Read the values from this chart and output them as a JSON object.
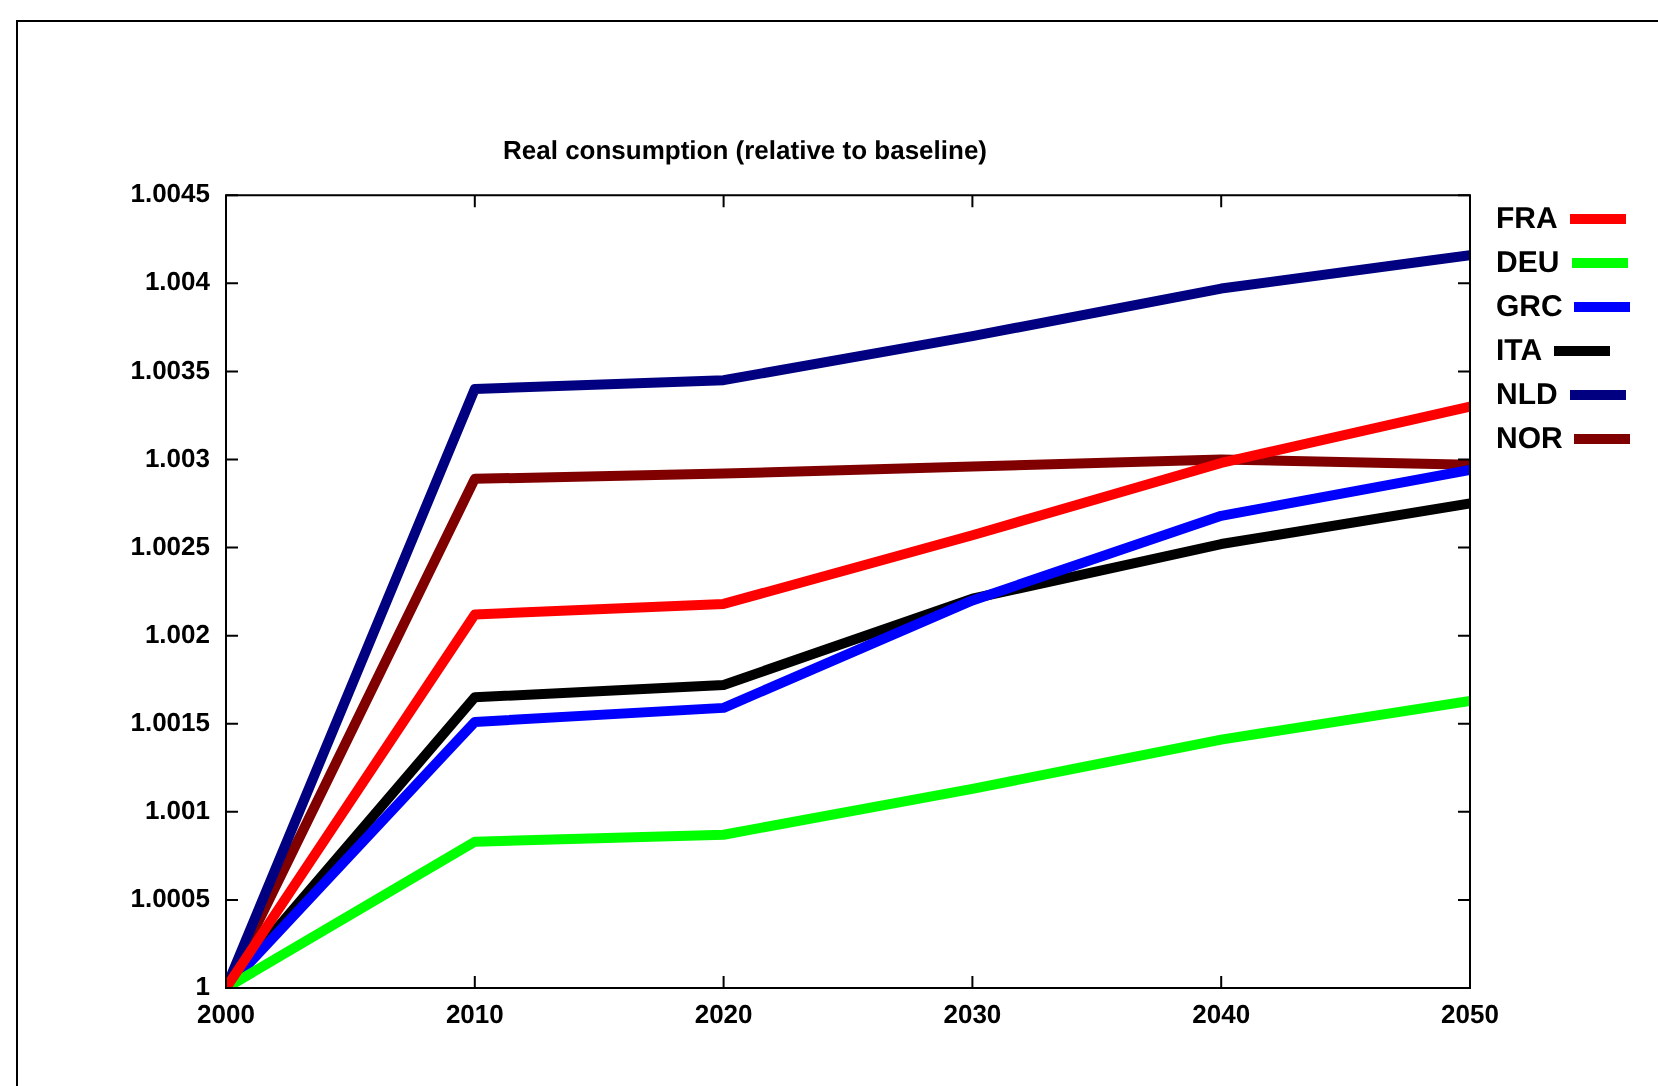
{
  "chart_data": {
    "type": "line",
    "title": "Real consumption (relative to baseline)",
    "x": [
      2000,
      2010,
      2020,
      2030,
      2040,
      2050
    ],
    "xlim": [
      2000,
      2050
    ],
    "xticks": [
      2000,
      2010,
      2020,
      2030,
      2040,
      2050
    ],
    "ylim": [
      1,
      1.0045
    ],
    "yticks": [
      1,
      1.0005,
      1.001,
      1.0015,
      1.002,
      1.0025,
      1.003,
      1.0035,
      1.004,
      1.0045
    ],
    "legend": "right",
    "marker": "none",
    "line_style": "solid",
    "series": [
      {
        "name": "FRA",
        "color": "#ff0000",
        "values": [
          1,
          1.00212,
          1.00218,
          1.00257,
          1.00298,
          1.0033
        ]
      },
      {
        "name": "DEU",
        "color": "#00ff00",
        "values": [
          1,
          1.00083,
          1.00087,
          1.00113,
          1.00141,
          1.00163
        ]
      },
      {
        "name": "GRC",
        "color": "#0000ff",
        "values": [
          1,
          1.00151,
          1.00159,
          1.0022,
          1.00268,
          1.00294
        ]
      },
      {
        "name": "ITA",
        "color": "#000000",
        "values": [
          1,
          1.00165,
          1.00172,
          1.00221,
          1.00252,
          1.00275
        ]
      },
      {
        "name": "NLD",
        "color": "#000080",
        "values": [
          1,
          1.0034,
          1.00345,
          1.0037,
          1.00397,
          1.00416
        ]
      },
      {
        "name": "NOR",
        "color": "#800000",
        "values": [
          1,
          1.00289,
          1.00292,
          1.00296,
          1.003,
          1.00297
        ]
      }
    ]
  }
}
